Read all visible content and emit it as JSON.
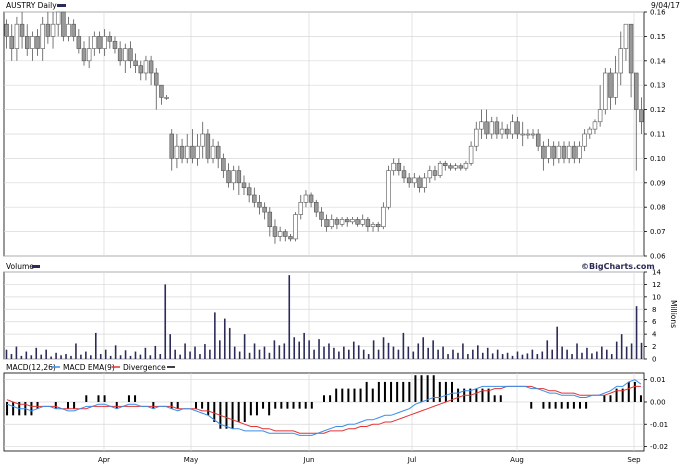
{
  "chart_data": [
    {
      "type": "candlestick",
      "ticker_label": "AUSTRY Daily",
      "date_label": "9/04/17",
      "ylim": [
        0.06,
        0.16
      ],
      "yticks": [
        "0.16",
        "0.15",
        "0.14",
        "0.13",
        "0.12",
        "0.11",
        "0.10",
        "0.09",
        "0.08",
        "0.07",
        "0.06"
      ],
      "x_categories": [
        "Apr",
        "May",
        "Jun",
        "Jul",
        "Aug",
        "Sep"
      ],
      "colors": {
        "up": "#ffffff",
        "down": "#999999",
        "outline": "#555555",
        "grid": "#d8d8d8"
      },
      "candles": [
        [
          0.155,
          0.15,
          0.145,
          0.157
        ],
        [
          0.15,
          0.145,
          0.14,
          0.155
        ],
        [
          0.145,
          0.155,
          0.14,
          0.158
        ],
        [
          0.155,
          0.15,
          0.145,
          0.16
        ],
        [
          0.15,
          0.145,
          0.142,
          0.155
        ],
        [
          0.145,
          0.15,
          0.14,
          0.152
        ],
        [
          0.15,
          0.145,
          0.142,
          0.153
        ],
        [
          0.145,
          0.155,
          0.14,
          0.158
        ],
        [
          0.155,
          0.15,
          0.147,
          0.16
        ],
        [
          0.15,
          0.155,
          0.145,
          0.16
        ],
        [
          0.155,
          0.16,
          0.15,
          0.16
        ],
        [
          0.16,
          0.15,
          0.148,
          0.16
        ],
        [
          0.15,
          0.155,
          0.148,
          0.158
        ],
        [
          0.155,
          0.15,
          0.148,
          0.157
        ],
        [
          0.15,
          0.145,
          0.143,
          0.153
        ],
        [
          0.145,
          0.14,
          0.138,
          0.148
        ],
        [
          0.14,
          0.145,
          0.137,
          0.15
        ],
        [
          0.145,
          0.15,
          0.142,
          0.152
        ],
        [
          0.15,
          0.145,
          0.143,
          0.152
        ],
        [
          0.145,
          0.15,
          0.142,
          0.153
        ],
        [
          0.15,
          0.148,
          0.145,
          0.152
        ],
        [
          0.148,
          0.145,
          0.143,
          0.15
        ],
        [
          0.145,
          0.14,
          0.138,
          0.148
        ],
        [
          0.14,
          0.145,
          0.135,
          0.147
        ],
        [
          0.145,
          0.14,
          0.137,
          0.148
        ],
        [
          0.14,
          0.138,
          0.135,
          0.143
        ],
        [
          0.138,
          0.135,
          0.132,
          0.14
        ],
        [
          0.135,
          0.14,
          0.132,
          0.142
        ],
        [
          0.14,
          0.135,
          0.13,
          0.142
        ],
        [
          0.135,
          0.13,
          0.12,
          0.137
        ],
        [
          0.13,
          0.125,
          0.122,
          0.13
        ],
        [
          0.125,
          0.125,
          0.124,
          0.126
        ],
        [
          0.11,
          0.1,
          0.095,
          0.112
        ],
        [
          0.1,
          0.105,
          0.096,
          0.11
        ],
        [
          0.105,
          0.1,
          0.098,
          0.108
        ],
        [
          0.1,
          0.105,
          0.098,
          0.11
        ],
        [
          0.105,
          0.1,
          0.098,
          0.112
        ],
        [
          0.1,
          0.105,
          0.097,
          0.11
        ],
        [
          0.105,
          0.11,
          0.1,
          0.115
        ],
        [
          0.11,
          0.1,
          0.098,
          0.112
        ],
        [
          0.1,
          0.105,
          0.098,
          0.108
        ],
        [
          0.105,
          0.1,
          0.096,
          0.107
        ],
        [
          0.1,
          0.095,
          0.092,
          0.102
        ],
        [
          0.095,
          0.09,
          0.088,
          0.098
        ],
        [
          0.09,
          0.095,
          0.087,
          0.097
        ],
        [
          0.095,
          0.09,
          0.085,
          0.097
        ],
        [
          0.09,
          0.088,
          0.085,
          0.093
        ],
        [
          0.088,
          0.085,
          0.082,
          0.09
        ],
        [
          0.085,
          0.082,
          0.08,
          0.088
        ],
        [
          0.082,
          0.08,
          0.077,
          0.085
        ],
        [
          0.08,
          0.078,
          0.075,
          0.082
        ],
        [
          0.078,
          0.072,
          0.068,
          0.08
        ],
        [
          0.072,
          0.068,
          0.065,
          0.075
        ],
        [
          0.068,
          0.07,
          0.066,
          0.072
        ],
        [
          0.07,
          0.068,
          0.066,
          0.071
        ],
        [
          0.068,
          0.067,
          0.066,
          0.069
        ],
        [
          0.067,
          0.077,
          0.066,
          0.078
        ],
        [
          0.077,
          0.082,
          0.075,
          0.085
        ],
        [
          0.082,
          0.085,
          0.08,
          0.087
        ],
        [
          0.085,
          0.082,
          0.08,
          0.086
        ],
        [
          0.082,
          0.078,
          0.076,
          0.083
        ],
        [
          0.078,
          0.075,
          0.072,
          0.08
        ],
        [
          0.075,
          0.072,
          0.07,
          0.077
        ],
        [
          0.072,
          0.075,
          0.071,
          0.077
        ],
        [
          0.075,
          0.073,
          0.071,
          0.076
        ],
        [
          0.073,
          0.075,
          0.072,
          0.076
        ],
        [
          0.075,
          0.074,
          0.072,
          0.076
        ],
        [
          0.074,
          0.075,
          0.073,
          0.076
        ],
        [
          0.075,
          0.073,
          0.072,
          0.076
        ],
        [
          0.073,
          0.075,
          0.072,
          0.077
        ],
        [
          0.075,
          0.072,
          0.07,
          0.076
        ],
        [
          0.072,
          0.073,
          0.07,
          0.074
        ],
        [
          0.073,
          0.072,
          0.07,
          0.074
        ],
        [
          0.072,
          0.08,
          0.071,
          0.082
        ],
        [
          0.08,
          0.095,
          0.079,
          0.097
        ],
        [
          0.095,
          0.098,
          0.093,
          0.1
        ],
        [
          0.098,
          0.095,
          0.093,
          0.1
        ],
        [
          0.095,
          0.092,
          0.09,
          0.097
        ],
        [
          0.092,
          0.09,
          0.088,
          0.094
        ],
        [
          0.09,
          0.092,
          0.088,
          0.094
        ],
        [
          0.092,
          0.088,
          0.086,
          0.093
        ],
        [
          0.088,
          0.092,
          0.086,
          0.094
        ],
        [
          0.092,
          0.095,
          0.09,
          0.097
        ],
        [
          0.095,
          0.093,
          0.091,
          0.097
        ],
        [
          0.093,
          0.098,
          0.092,
          0.099
        ],
        [
          0.098,
          0.097,
          0.095,
          0.099
        ],
        [
          0.097,
          0.096,
          0.095,
          0.098
        ],
        [
          0.096,
          0.097,
          0.095,
          0.098
        ],
        [
          0.097,
          0.096,
          0.095,
          0.098
        ],
        [
          0.096,
          0.098,
          0.095,
          0.099
        ],
        [
          0.098,
          0.105,
          0.097,
          0.107
        ],
        [
          0.105,
          0.112,
          0.103,
          0.115
        ],
        [
          0.112,
          0.115,
          0.108,
          0.12
        ],
        [
          0.115,
          0.11,
          0.108,
          0.12
        ],
        [
          0.11,
          0.115,
          0.108,
          0.117
        ],
        [
          0.115,
          0.11,
          0.108,
          0.117
        ],
        [
          0.11,
          0.112,
          0.108,
          0.115
        ],
        [
          0.112,
          0.11,
          0.108,
          0.114
        ],
        [
          0.11,
          0.115,
          0.108,
          0.118
        ],
        [
          0.115,
          0.11,
          0.108,
          0.117
        ],
        [
          0.11,
          0.11,
          0.105,
          0.115
        ],
        [
          0.11,
          0.11,
          0.108,
          0.112
        ],
        [
          0.11,
          0.11,
          0.108,
          0.112
        ],
        [
          0.11,
          0.105,
          0.103,
          0.112
        ],
        [
          0.105,
          0.1,
          0.095,
          0.107
        ],
        [
          0.1,
          0.105,
          0.098,
          0.108
        ],
        [
          0.105,
          0.1,
          0.097,
          0.107
        ],
        [
          0.1,
          0.105,
          0.098,
          0.107
        ],
        [
          0.105,
          0.1,
          0.098,
          0.107
        ],
        [
          0.1,
          0.105,
          0.098,
          0.107
        ],
        [
          0.105,
          0.1,
          0.098,
          0.107
        ],
        [
          0.1,
          0.105,
          0.098,
          0.107
        ],
        [
          0.105,
          0.11,
          0.103,
          0.112
        ],
        [
          0.11,
          0.112,
          0.108,
          0.113
        ],
        [
          0.112,
          0.115,
          0.11,
          0.116
        ],
        [
          0.115,
          0.12,
          0.113,
          0.13
        ],
        [
          0.12,
          0.135,
          0.118,
          0.137
        ],
        [
          0.135,
          0.125,
          0.12,
          0.137
        ],
        [
          0.125,
          0.135,
          0.122,
          0.142
        ],
        [
          0.135,
          0.145,
          0.13,
          0.152
        ],
        [
          0.145,
          0.155,
          0.14,
          0.155
        ],
        [
          0.155,
          0.135,
          0.125,
          0.155
        ],
        [
          0.135,
          0.12,
          0.095,
          0.135
        ],
        [
          0.12,
          0.115,
          0.11,
          0.125
        ]
      ]
    },
    {
      "type": "bar",
      "label": "Volume",
      "brand": "©BigCharts.com",
      "ylabel": "Millions",
      "ylim": [
        0,
        14
      ],
      "yticks": [
        "14",
        "12",
        "10",
        "8",
        "6",
        "4",
        "2",
        "0"
      ],
      "color": "#2b2b5a",
      "values": [
        1.5,
        0.8,
        2.0,
        0.5,
        1.2,
        0.6,
        1.8,
        0.7,
        1.5,
        0.4,
        1.0,
        0.6,
        0.8,
        0.5,
        2.5,
        0.7,
        1.2,
        0.6,
        4.2,
        0.8,
        1.5,
        0.5,
        2.2,
        0.6,
        1.4,
        0.5,
        1.2,
        0.7,
        1.8,
        0.6,
        2.1,
        0.8,
        12.0,
        4.0,
        1.5,
        0.7,
        2.5,
        1.2,
        2.0,
        0.8,
        2.4,
        1.5,
        7.5,
        3.0,
        6.5,
        5.0,
        2.0,
        1.2,
        4.0,
        1.0,
        2.5,
        1.5,
        2.0,
        1.0,
        3.0,
        2.2,
        2.5,
        13.5,
        3.5,
        2.8,
        4.2,
        3.0,
        1.5,
        3.2,
        2.0,
        2.5,
        1.8,
        1.2,
        2.0,
        1.5,
        2.8,
        2.2,
        1.5,
        0.8,
        3.0,
        1.5,
        3.5,
        2.6,
        2.0,
        1.5,
        4.2,
        2.0,
        1.2,
        2.5,
        3.5,
        1.8,
        3.0,
        1.5,
        2.0,
        0.8,
        1.5,
        1.0,
        2.5,
        0.8,
        1.5,
        2.2,
        1.0,
        1.8,
        0.9,
        1.5,
        0.8,
        1.0,
        0.5,
        1.2,
        0.7,
        0.9,
        1.5,
        0.8,
        1.2,
        3.0,
        1.5,
        5.2,
        2.0,
        1.5,
        0.8,
        2.5,
        1.0,
        1.8,
        0.9,
        1.2,
        2.0,
        1.5,
        0.8,
        2.8,
        4.0,
        2.0,
        2.5,
        8.5,
        2.6
      ]
    },
    {
      "type": "line",
      "legend": [
        "MACD(12,26)",
        "MACD EMA(9)",
        "Divergence"
      ],
      "ylim": [
        -0.022,
        0.013
      ],
      "yticks": [
        "0.01",
        "0.00",
        "-0.01",
        "-0.02"
      ],
      "colors": {
        "macd": "#3a8ee8",
        "signal": "#e23434",
        "divergence": "#000000"
      },
      "series": [
        {
          "name": "MACD(12,26)",
          "values": [
            -0.001,
            -0.002,
            -0.003,
            -0.003,
            -0.004,
            -0.003,
            -0.002,
            -0.002,
            -0.003,
            -0.003,
            -0.004,
            -0.004,
            -0.003,
            -0.002,
            -0.002,
            -0.001,
            -0.001,
            -0.002,
            -0.003,
            -0.002,
            -0.001,
            -0.001,
            -0.002,
            -0.002,
            -0.003,
            -0.002,
            -0.002,
            -0.003,
            -0.004,
            -0.003,
            -0.003,
            -0.004,
            -0.005,
            -0.006,
            -0.008,
            -0.01,
            -0.011,
            -0.012,
            -0.012,
            -0.013,
            -0.013,
            -0.013,
            -0.013,
            -0.014,
            -0.014,
            -0.014,
            -0.014,
            -0.014,
            -0.015,
            -0.015,
            -0.015,
            -0.014,
            -0.013,
            -0.012,
            -0.011,
            -0.011,
            -0.01,
            -0.01,
            -0.009,
            -0.008,
            -0.008,
            -0.007,
            -0.006,
            -0.006,
            -0.005,
            -0.004,
            -0.003,
            -0.001,
            0.0,
            0.001,
            0.002,
            0.002,
            0.003,
            0.004,
            0.004,
            0.005,
            0.005,
            0.006,
            0.007,
            0.007,
            0.007,
            0.007,
            0.007,
            0.007,
            0.007,
            0.007,
            0.006,
            0.006,
            0.005,
            0.004,
            0.004,
            0.003,
            0.003,
            0.003,
            0.002,
            0.002,
            0.003,
            0.003,
            0.004,
            0.005,
            0.007,
            0.007,
            0.009,
            0.01,
            0.008
          ]
        },
        {
          "name": "MACD EMA(9)",
          "values": [
            0.001,
            0.0,
            -0.001,
            -0.001,
            -0.002,
            -0.002,
            -0.002,
            -0.002,
            -0.002,
            -0.003,
            -0.003,
            -0.003,
            -0.003,
            -0.003,
            -0.002,
            -0.002,
            -0.002,
            -0.002,
            -0.002,
            -0.002,
            -0.002,
            -0.002,
            -0.002,
            -0.002,
            -0.002,
            -0.002,
            -0.002,
            -0.002,
            -0.003,
            -0.003,
            -0.003,
            -0.003,
            -0.004,
            -0.004,
            -0.005,
            -0.006,
            -0.007,
            -0.008,
            -0.009,
            -0.01,
            -0.011,
            -0.011,
            -0.012,
            -0.012,
            -0.013,
            -0.013,
            -0.013,
            -0.013,
            -0.014,
            -0.014,
            -0.014,
            -0.014,
            -0.014,
            -0.013,
            -0.013,
            -0.013,
            -0.012,
            -0.012,
            -0.011,
            -0.011,
            -0.01,
            -0.01,
            -0.009,
            -0.009,
            -0.008,
            -0.007,
            -0.006,
            -0.005,
            -0.004,
            -0.003,
            -0.002,
            -0.001,
            0.0,
            0.001,
            0.002,
            0.003,
            0.003,
            0.004,
            0.005,
            0.005,
            0.006,
            0.006,
            0.007,
            0.007,
            0.007,
            0.007,
            0.007,
            0.006,
            0.006,
            0.005,
            0.005,
            0.004,
            0.004,
            0.004,
            0.003,
            0.003,
            0.003,
            0.003,
            0.003,
            0.004,
            0.005,
            0.005,
            0.006,
            0.007,
            0.007
          ]
        }
      ]
    }
  ]
}
